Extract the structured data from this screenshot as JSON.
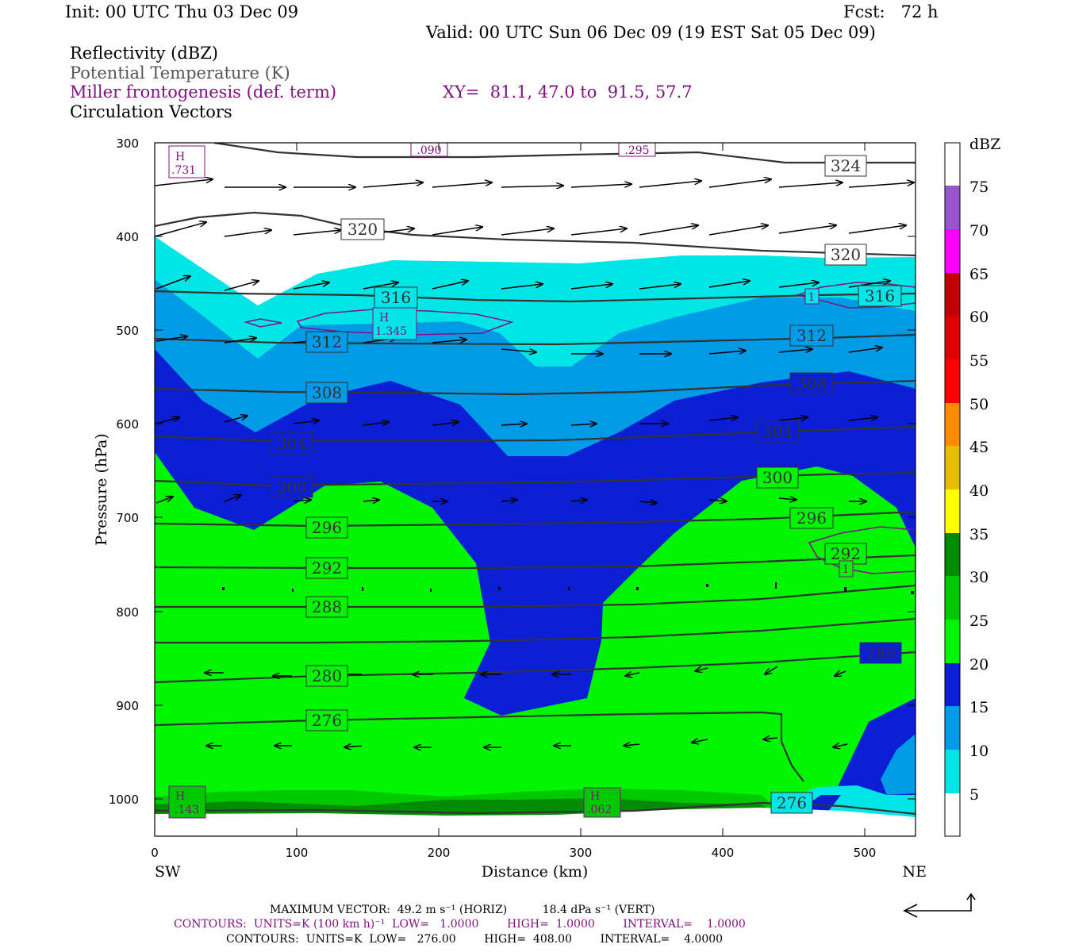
{
  "header": {
    "init": "Init: 00 UTC Thu 03 Dec 09",
    "fcst": "Fcst:   72 h",
    "valid": "Valid: 00 UTC Sun 06 Dec 09 (19 EST Sat 05 Dec 09)",
    "field1": "Reflectivity (dBZ)",
    "field2": "Potential Temperature (K)",
    "field3": "Miller frontogenesis (def. term)",
    "xy": "XY=  81.1, 47.0 to  91.5, 57.7",
    "field4": "Circulation Vectors"
  },
  "footer": {
    "maxvec": "MAXIMUM VECTOR:  49.2 m s⁻¹ (HORIZ)          18.4 dPa s⁻¹ (VERT)",
    "contours1": "CONTOURS:  UNITS=K (100 km h)⁻¹  LOW=   1.0000        HIGH=  1.0000        INTERVAL=    1.0000",
    "contours2": "CONTOURS:  UNITS=K  LOW=   276.00        HIGH=  408.00        INTERVAL=    4.0000"
  },
  "colors": {
    "c5": "#00e6e6",
    "c10": "#009be6",
    "c15": "#0a1ed6",
    "c20": "#00f500",
    "c25": "#00c800",
    "c30": "#008c00",
    "c35": "#ffff00",
    "c40": "#e6bf00",
    "c45": "#ff8c00",
    "c50": "#ff0000",
    "c55": "#dc0000",
    "c60": "#c00000",
    "c65": "#ff00ff",
    "c70": "#9955cc",
    "purple": "#80117f",
    "isentrope": "#333333"
  },
  "chart_data": {
    "type": "heatmap",
    "xlabel": "Distance (km)",
    "ylabel": "Pressure (hPa)",
    "xlim": [
      0,
      536
    ],
    "ylim": [
      1040,
      300
    ],
    "x_ticks": [
      "0",
      "100",
      "200",
      "300",
      "400",
      "500"
    ],
    "y_ticks": [
      "300",
      "400",
      "500",
      "600",
      "700",
      "800",
      "900",
      "1000"
    ],
    "x_end_labels": {
      "left": "SW",
      "right": "NE"
    },
    "colorbar": {
      "unit": "dBZ",
      "labels": [
        "5",
        "10",
        "15",
        "20",
        "25",
        "30",
        "35",
        "40",
        "45",
        "50",
        "55",
        "60",
        "65",
        "70",
        "75"
      ]
    },
    "isentrope_labels": [
      "324",
      "320",
      "320",
      "316",
      "316",
      "312",
      "312",
      "308",
      "308",
      "304",
      "304",
      "300",
      "300",
      "296",
      "296",
      "292",
      "292",
      "288",
      "280",
      "280",
      "276",
      "276"
    ],
    "frontogenesis_labels": {
      "upper_left": {
        "mark": "H",
        "value": ".731"
      },
      "mid": {
        "mark": "H",
        "value": "1.345"
      },
      "top1": ".090",
      "top2": ".295",
      "bottom_left": {
        "mark": "H",
        "value": ".143"
      },
      "bottom_mid": {
        "mark": "H",
        "value": ".062"
      },
      "contour_marks": [
        "1",
        "1"
      ]
    }
  }
}
